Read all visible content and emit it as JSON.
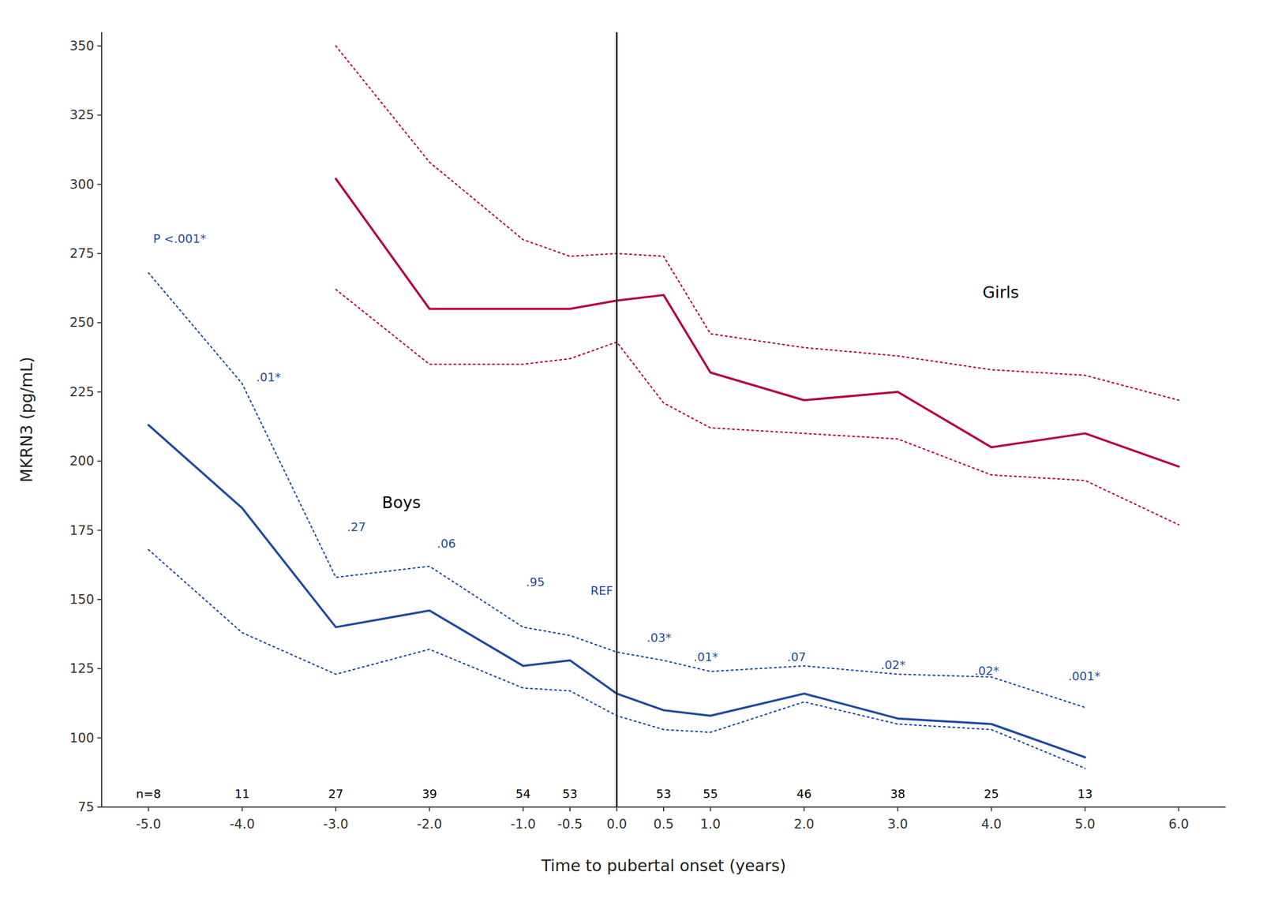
{
  "chart_data": {
    "type": "line",
    "xlabel": "Time to pubertal onset (years)",
    "ylabel": "MKRN3 (pg/mL)",
    "xlim": [
      -5.5,
      6.5
    ],
    "ylim": [
      75,
      355
    ],
    "xticks": [
      {
        "value": -5,
        "label": "-5.0"
      },
      {
        "value": -4,
        "label": "-4.0"
      },
      {
        "value": -3,
        "label": "-3.0"
      },
      {
        "value": -2,
        "label": "-2.0"
      },
      {
        "value": -1,
        "label": "-1.0"
      },
      -0.5,
      {
        "value": 0,
        "label": "0.0"
      },
      0.5,
      {
        "value": 1,
        "label": "1.0"
      },
      {
        "value": 2,
        "label": "2.0"
      },
      {
        "value": 3,
        "label": "3.0"
      },
      {
        "value": 4,
        "label": "4.0"
      },
      {
        "value": 5,
        "label": "5.0"
      },
      {
        "value": 6,
        "label": "6.0"
      }
    ],
    "yticks": [
      75,
      100,
      125,
      150,
      175,
      200,
      225,
      250,
      275,
      300,
      325,
      350
    ],
    "grid": false,
    "series": [
      {
        "x": [
          -5,
          -4,
          -3,
          -2,
          -1,
          -0.5,
          0,
          0.5,
          1,
          2,
          3,
          4,
          5
        ],
        "values": [
          213,
          183,
          140,
          146,
          126,
          128,
          116,
          110,
          108,
          116,
          107,
          105,
          93
        ],
        "color": "#1E4BA0",
        "line_style": "solid"
      },
      {
        "x": [
          -5,
          -4,
          -3,
          -2,
          -1,
          -0.5,
          0,
          0.5,
          1,
          2,
          3,
          4,
          5
        ],
        "values": [
          268,
          228,
          158,
          162,
          140,
          137,
          131,
          128,
          124,
          126,
          123,
          122,
          111
        ],
        "color": "#1E4BA0",
        "line_style": "dotted"
      },
      {
        "x": [
          -5,
          -4,
          -3,
          -2,
          -1,
          -0.5,
          0,
          0.5,
          1,
          2,
          3,
          4,
          5
        ],
        "values": [
          168,
          138,
          123,
          132,
          118,
          117,
          108,
          103,
          102,
          113,
          105,
          103,
          89
        ],
        "color": "#1E4BA0",
        "line_style": "dotted"
      },
      {
        "x": [
          -3,
          -2,
          -1,
          -0.5,
          0,
          0.5,
          1,
          2,
          3,
          4,
          5,
          6
        ],
        "values": [
          302,
          255,
          255,
          255,
          258,
          260,
          232,
          222,
          225,
          205,
          210,
          198
        ],
        "color": "#B8003A",
        "line_style": "solid"
      },
      {
        "x": [
          -3,
          -2,
          -1,
          -0.5,
          0,
          0.5,
          1,
          2,
          3,
          4,
          5,
          6
        ],
        "values": [
          350,
          308,
          280,
          274,
          275,
          274,
          246,
          241,
          238,
          233,
          231,
          222
        ],
        "color": "#B8003A",
        "line_style": "dotted"
      },
      {
        "x": [
          -3,
          -2,
          -1,
          -0.5,
          0,
          0.5,
          1,
          2,
          3,
          4,
          5,
          6
        ],
        "values": [
          262,
          235,
          235,
          237,
          243,
          221,
          212,
          210,
          208,
          195,
          193,
          177
        ],
        "color": "#B8003A",
        "line_style": "dotted"
      }
    ],
    "reference_lines": [
      {
        "x": 0,
        "color": "#111111"
      }
    ],
    "n_labels": [
      {
        "text": "n=8",
        "x": -5,
        "y": 77.5
      },
      {
        "text": "11",
        "x": -4,
        "y": 77.5
      },
      {
        "text": "27",
        "x": -3,
        "y": 77.5
      },
      {
        "text": "39",
        "x": -2,
        "y": 77.5
      },
      {
        "text": "54",
        "x": -1,
        "y": 77.5
      },
      {
        "text": "53",
        "x": -0.5,
        "y": 77.5
      },
      {
        "text": "53",
        "x": 0.5,
        "y": 77.5
      },
      {
        "text": "55",
        "x": 1,
        "y": 77.5
      },
      {
        "text": "46",
        "x": 2,
        "y": 77.5
      },
      {
        "text": "38",
        "x": 3,
        "y": 77.5
      },
      {
        "text": "25",
        "x": 4,
        "y": 77.5
      },
      {
        "text": "13",
        "x": 5,
        "y": 77.5
      }
    ],
    "p_labels": [
      {
        "text": "P <.001*",
        "x": -4.95,
        "y": 278,
        "color": "#1E4BA0"
      },
      {
        "text": ".01*",
        "x": -3.85,
        "y": 228,
        "color": "#1E4BA0"
      },
      {
        "text": ".27",
        "x": -2.88,
        "y": 174,
        "color": "#1E4BA0"
      },
      {
        "text": ".06",
        "x": -1.92,
        "y": 168,
        "color": "#1E4BA0"
      },
      {
        "text": ".95",
        "x": -0.97,
        "y": 154,
        "color": "#1E4BA0"
      },
      {
        "text": "REF",
        "x": -0.28,
        "y": 151,
        "color": "#1E4BA0"
      },
      {
        "text": ".03*",
        "x": 0.32,
        "y": 134,
        "color": "#1E4BA0"
      },
      {
        "text": ".01*",
        "x": 0.82,
        "y": 127,
        "color": "#1E4BA0"
      },
      {
        "text": ".07",
        "x": 1.82,
        "y": 127,
        "color": "#1E4BA0"
      },
      {
        "text": ".02*",
        "x": 2.82,
        "y": 124,
        "color": "#1E4BA0"
      },
      {
        "text": ".02*",
        "x": 3.82,
        "y": 122,
        "color": "#1E4BA0"
      },
      {
        "text": ".001*",
        "x": 4.82,
        "y": 120,
        "color": "#1E4BA0"
      }
    ],
    "group_labels": [
      {
        "text": "Boys",
        "x": -2.3,
        "y": 185
      },
      {
        "text": "Girls",
        "x": 4.1,
        "y": 261
      }
    ]
  }
}
